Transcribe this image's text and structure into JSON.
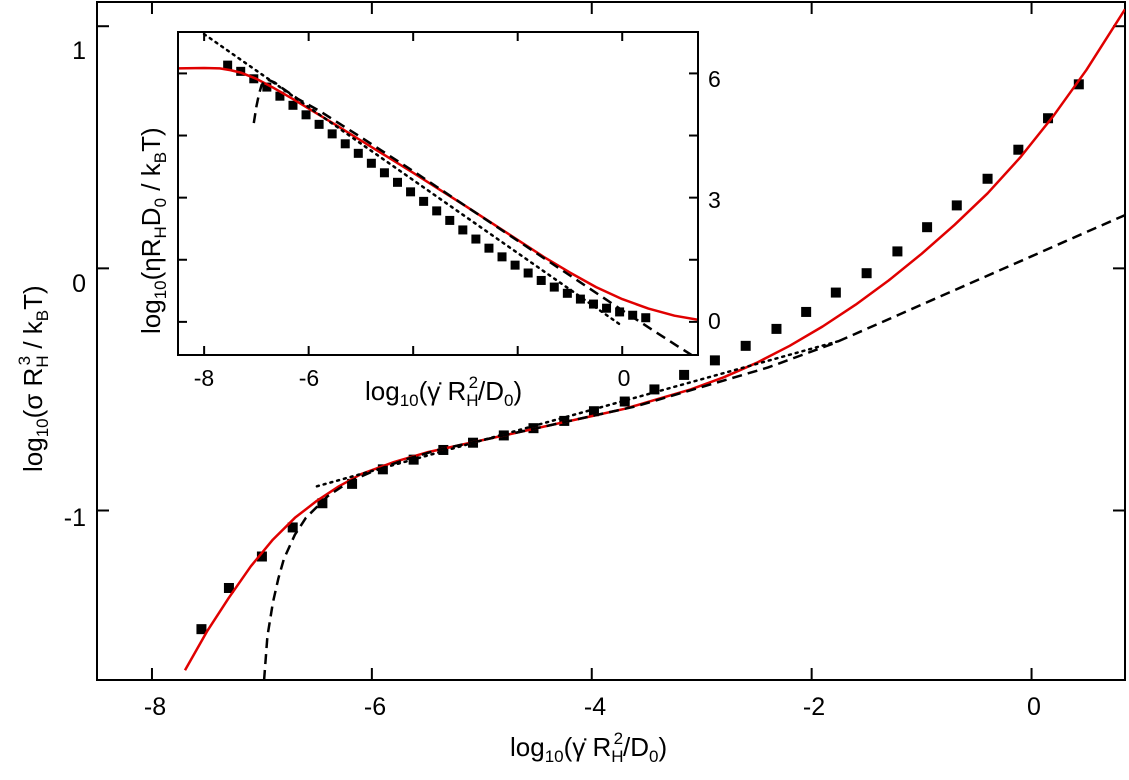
{
  "chart_data": [
    {
      "type": "scatter",
      "panel": "main",
      "xlim": [
        -8.5,
        0.85
      ],
      "ylim": [
        -1.7,
        1.1
      ],
      "xticks": [
        -8,
        -6,
        -4,
        -2,
        0
      ],
      "yticks": [
        -1,
        0,
        1
      ],
      "x_tick_labels": [
        "-8",
        "-6",
        "-4",
        "-2",
        "0"
      ],
      "y_tick_labels": [
        "-1",
        "0",
        "1"
      ],
      "xlabel": "log₁₀(γ̇ R²H/D₀)",
      "ylabel": "log₁₀(σ R³H / kBT)",
      "series": [
        {
          "style": "square markers",
          "color": "#000000",
          "x": [
            -7.55,
            -7.3,
            -7.0,
            -6.72,
            -6.45,
            -6.18,
            -5.9,
            -5.62,
            -5.35,
            -5.08,
            -4.8,
            -4.53,
            -4.25,
            -3.98,
            -3.7,
            -3.43,
            -3.16,
            -2.88,
            -2.6,
            -2.32,
            -2.05,
            -1.78,
            -1.5,
            -1.22,
            -0.95,
            -0.68,
            -0.4,
            -0.12,
            0.15,
            0.43
          ],
          "y": [
            -1.49,
            -1.32,
            -1.19,
            -1.07,
            -0.97,
            -0.89,
            -0.83,
            -0.79,
            -0.75,
            -0.72,
            -0.69,
            -0.66,
            -0.63,
            -0.59,
            -0.55,
            -0.5,
            -0.44,
            -0.38,
            -0.32,
            -0.25,
            -0.18,
            -0.1,
            -0.02,
            0.07,
            0.17,
            0.26,
            0.37,
            0.49,
            0.62,
            0.76
          ]
        },
        {
          "style": "solid line",
          "color": "#e00000",
          "x": [
            -7.7,
            -7.5,
            -7.3,
            -7.1,
            -6.9,
            -6.7,
            -6.5,
            -6.3,
            -6.1,
            -5.8,
            -5.5,
            -5.2,
            -4.9,
            -4.6,
            -4.3,
            -4.0,
            -3.7,
            -3.4,
            -3.1,
            -2.8,
            -2.5,
            -2.2,
            -1.9,
            -1.6,
            -1.3,
            -1.0,
            -0.7,
            -0.4,
            -0.1,
            0.2,
            0.5,
            0.85
          ],
          "y": [
            -1.66,
            -1.5,
            -1.36,
            -1.23,
            -1.12,
            -1.03,
            -0.96,
            -0.9,
            -0.85,
            -0.8,
            -0.76,
            -0.73,
            -0.7,
            -0.67,
            -0.64,
            -0.61,
            -0.58,
            -0.54,
            -0.5,
            -0.45,
            -0.39,
            -0.32,
            -0.24,
            -0.15,
            -0.05,
            0.06,
            0.18,
            0.31,
            0.46,
            0.63,
            0.82,
            1.07
          ]
        },
        {
          "style": "dashed line",
          "color": "#000000",
          "x": [
            -6.98,
            -6.95,
            -6.9,
            -6.85,
            -6.8,
            -6.7,
            -6.6,
            -6.4,
            -6.2,
            -6.0,
            -5.7,
            -5.4,
            -5.1,
            -4.8,
            -4.5,
            -4.2,
            -3.9,
            -3.6,
            -3.3,
            -3.0,
            -2.7,
            -2.4,
            -2.1,
            -1.8,
            -1.5,
            -1.2,
            -0.9,
            -0.6,
            -0.3,
            0.0,
            0.3,
            0.6,
            0.85
          ],
          "y": [
            -1.7,
            -1.52,
            -1.38,
            -1.28,
            -1.2,
            -1.1,
            -1.03,
            -0.94,
            -0.88,
            -0.84,
            -0.79,
            -0.75,
            -0.72,
            -0.69,
            -0.66,
            -0.63,
            -0.6,
            -0.57,
            -0.53,
            -0.49,
            -0.45,
            -0.41,
            -0.36,
            -0.31,
            -0.25,
            -0.19,
            -0.13,
            -0.07,
            -0.01,
            0.05,
            0.11,
            0.17,
            0.22
          ]
        },
        {
          "style": "dotted line",
          "color": "#000000",
          "x": [
            -6.5,
            -1.75
          ],
          "y": [
            -0.9,
            -0.3
          ]
        }
      ]
    },
    {
      "type": "scatter",
      "panel": "inset",
      "xlim": [
        -8.5,
        1.45
      ],
      "ylim": [
        -0.8,
        7.0
      ],
      "xticks": [
        -8,
        -6,
        -4,
        -2,
        0
      ],
      "yticks": [
        0,
        1.5,
        3,
        4.5,
        6
      ],
      "x_tick_labels": [
        "-8",
        "-6",
        "0"
      ],
      "y_tick_labels": [
        "0",
        "3",
        "6"
      ],
      "xlabel": "log₁₀(γ̇ R²H/D₀)",
      "ylabel": "log₁₀(ηRHD₀ / kBT)",
      "series": [
        {
          "style": "square markers",
          "color": "#000000",
          "x": [
            -7.55,
            -7.3,
            -7.05,
            -6.8,
            -6.55,
            -6.3,
            -6.05,
            -5.8,
            -5.55,
            -5.3,
            -5.05,
            -4.8,
            -4.55,
            -4.3,
            -4.05,
            -3.8,
            -3.55,
            -3.3,
            -3.05,
            -2.8,
            -2.55,
            -2.3,
            -2.05,
            -1.8,
            -1.55,
            -1.3,
            -1.05,
            -0.8,
            -0.55,
            -0.3,
            -0.05,
            0.2,
            0.45
          ],
          "y": [
            6.2,
            6.05,
            5.87,
            5.67,
            5.45,
            5.23,
            5.0,
            4.77,
            4.54,
            4.3,
            4.07,
            3.83,
            3.6,
            3.37,
            3.14,
            2.91,
            2.68,
            2.45,
            2.22,
            2.0,
            1.78,
            1.57,
            1.37,
            1.18,
            1.0,
            0.84,
            0.69,
            0.55,
            0.43,
            0.33,
            0.24,
            0.16,
            0.1
          ]
        },
        {
          "style": "solid line",
          "color": "#e00000",
          "x": [
            -8.5,
            -8.0,
            -7.7,
            -7.5,
            -7.3,
            -7.0,
            -6.7,
            -6.3,
            -6.0,
            -5.5,
            -5.0,
            -4.5,
            -4.0,
            -3.5,
            -3.0,
            -2.5,
            -2.0,
            -1.5,
            -1.0,
            -0.5,
            0.0,
            0.5,
            1.0,
            1.45
          ],
          "y": [
            6.12,
            6.13,
            6.12,
            6.08,
            6.02,
            5.87,
            5.67,
            5.38,
            5.15,
            4.77,
            4.38,
            3.99,
            3.6,
            3.2,
            2.8,
            2.39,
            1.98,
            1.57,
            1.19,
            0.84,
            0.55,
            0.32,
            0.15,
            0.05
          ]
        },
        {
          "style": "dashed line",
          "color": "#000000",
          "x": [
            -7.05,
            -7.0,
            -6.95,
            -6.9,
            -6.8,
            -6.65,
            -6.5,
            -6.2,
            -5.8,
            -5.0,
            -4.0,
            -3.0,
            -2.0,
            -1.0,
            0.0,
            0.5,
            1.0,
            1.45
          ],
          "y": [
            4.8,
            5.2,
            5.5,
            5.72,
            5.86,
            5.78,
            5.64,
            5.38,
            5.1,
            4.46,
            3.64,
            2.8,
            1.96,
            1.12,
            0.28,
            -0.13,
            -0.54,
            -0.9
          ]
        },
        {
          "style": "dotted line",
          "color": "#000000",
          "x": [
            -8.0,
            0.0
          ],
          "y": [
            6.95,
            -0.1
          ]
        }
      ]
    }
  ]
}
